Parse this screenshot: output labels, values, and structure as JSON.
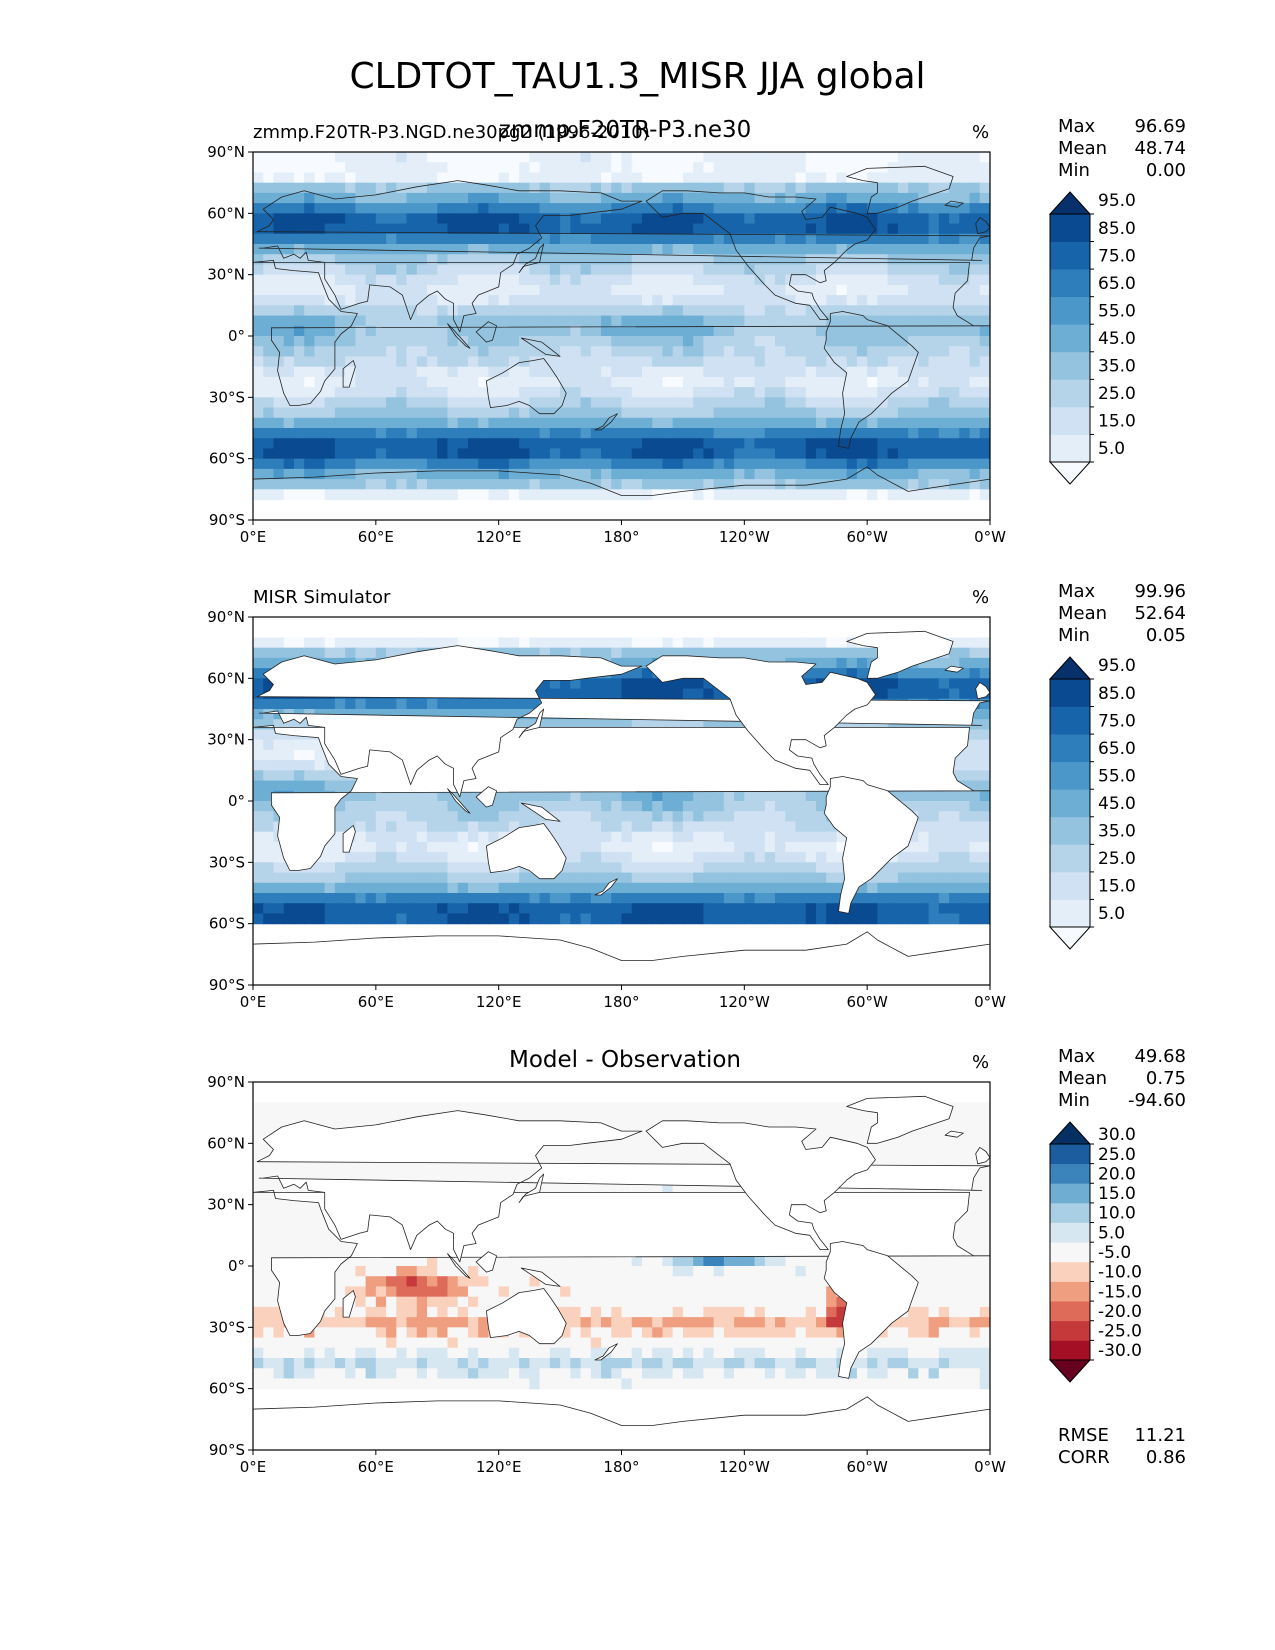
{
  "title": "CLDTOT_TAU1.3_MISR JJA global",
  "chart_data": [
    {
      "type": "heatmap",
      "title_left": "zmmp.F20TR-P3.NGD.ne30pg2 (1996-2010)",
      "title_center": "zmmp.F20TR-P3.ne30",
      "units": "%",
      "x_ticks": [
        "0°E",
        "60°E",
        "120°E",
        "180°",
        "120°W",
        "60°W",
        "0°W"
      ],
      "y_ticks": [
        "90°N",
        "60°N",
        "30°N",
        "0°",
        "30°S",
        "60°S",
        "90°S"
      ],
      "xlim": [
        0,
        360
      ],
      "ylim": [
        -90,
        90
      ],
      "stats": [
        {
          "label": "Max",
          "value": "96.69"
        },
        {
          "label": "Mean",
          "value": "48.74"
        },
        {
          "label": "Min",
          "value": "0.00"
        }
      ],
      "colorbar": {
        "levels": [
          "5.0",
          "15.0",
          "25.0",
          "35.0",
          "45.0",
          "55.0",
          "65.0",
          "75.0",
          "85.0",
          "95.0"
        ],
        "colors": [
          "#f7fbff",
          "#e3eef9",
          "#cfe1f2",
          "#b5d4e9",
          "#93c3df",
          "#6daed5",
          "#4b97c9",
          "#2f7ebc",
          "#1864aa",
          "#0a4a90",
          "#08306b"
        ]
      }
    },
    {
      "type": "heatmap",
      "title_left": "MISR Simulator",
      "title_center": "",
      "units": "%",
      "x_ticks": [
        "0°E",
        "60°E",
        "120°E",
        "180°",
        "120°W",
        "60°W",
        "0°W"
      ],
      "y_ticks": [
        "90°N",
        "60°N",
        "30°N",
        "0°",
        "30°S",
        "60°S",
        "90°S"
      ],
      "xlim": [
        0,
        360
      ],
      "ylim": [
        -90,
        90
      ],
      "stats": [
        {
          "label": "Max",
          "value": "99.96"
        },
        {
          "label": "Mean",
          "value": "52.64"
        },
        {
          "label": "Min",
          "value": "0.05"
        }
      ],
      "colorbar": {
        "levels": [
          "5.0",
          "15.0",
          "25.0",
          "35.0",
          "45.0",
          "55.0",
          "65.0",
          "75.0",
          "85.0",
          "95.0"
        ],
        "colors": [
          "#f7fbff",
          "#e3eef9",
          "#cfe1f2",
          "#b5d4e9",
          "#93c3df",
          "#6daed5",
          "#4b97c9",
          "#2f7ebc",
          "#1864aa",
          "#0a4a90",
          "#08306b"
        ]
      }
    },
    {
      "type": "heatmap",
      "title_left": "",
      "title_center": "Model - Observation",
      "units": "%",
      "x_ticks": [
        "0°E",
        "60°E",
        "120°E",
        "180°",
        "120°W",
        "60°W",
        "0°W"
      ],
      "y_ticks": [
        "90°N",
        "60°N",
        "30°N",
        "0°",
        "30°S",
        "60°S",
        "90°S"
      ],
      "xlim": [
        0,
        360
      ],
      "ylim": [
        -90,
        90
      ],
      "stats": [
        {
          "label": "Max",
          "value": "49.68"
        },
        {
          "label": "Mean",
          "value": "0.75"
        },
        {
          "label": "Min",
          "value": "-94.60"
        }
      ],
      "bottom_stats": [
        {
          "label": "RMSE",
          "value": "11.21"
        },
        {
          "label": "CORR",
          "value": "0.86"
        }
      ],
      "colorbar": {
        "levels": [
          "-30.0",
          "-25.0",
          "-20.0",
          "-15.0",
          "-10.0",
          "-5.0",
          "5.0",
          "10.0",
          "15.0",
          "20.0",
          "25.0",
          "30.0"
        ],
        "colors": [
          "#67001f",
          "#a50f26",
          "#c6393b",
          "#de6a5a",
          "#f09e80",
          "#fad1bd",
          "#f7f7f7",
          "#d7e7f1",
          "#a9cfe5",
          "#6faed2",
          "#3b83bb",
          "#1c5da0",
          "#053061"
        ]
      }
    }
  ]
}
